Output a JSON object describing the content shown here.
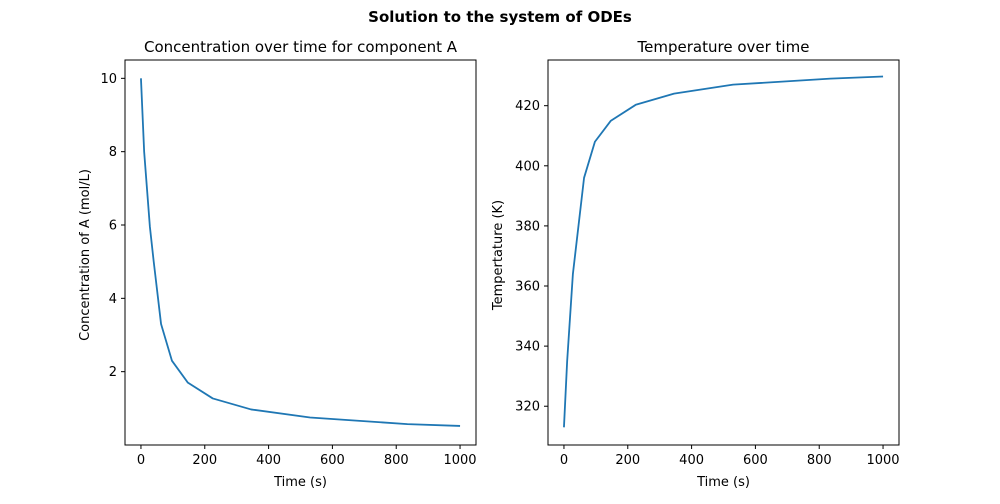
{
  "figure": {
    "suptitle": "Solution to the system of ODEs"
  },
  "colors": {
    "series": "#1f77b4",
    "axes": "#000000",
    "background": "#ffffff"
  },
  "chart_data": [
    {
      "type": "line",
      "title": "Concentration over time for component A",
      "xlabel": "Time (s)",
      "ylabel": "Concentration of A (mol/L)",
      "xlim": [
        -50,
        1050
      ],
      "ylim": [
        -0.0,
        10.5
      ],
      "xticks": [
        0,
        200,
        400,
        600,
        800,
        1000
      ],
      "xtick_labels": [
        "0",
        "200",
        "400",
        "600",
        "800",
        "1000"
      ],
      "yticks": [
        2,
        4,
        6,
        8,
        10
      ],
      "ytick_labels": [
        "2",
        "4",
        "6",
        "8",
        "10"
      ],
      "grid": false,
      "series": [
        {
          "x": [
            0,
            10,
            28,
            40,
            63,
            97,
            147,
            225,
            345,
            530,
            835,
            1000
          ],
          "y": [
            10.0,
            8.0,
            5.95,
            5.0,
            3.3,
            2.3,
            1.7,
            1.27,
            0.97,
            0.75,
            0.57,
            0.52
          ]
        }
      ]
    },
    {
      "type": "line",
      "title": "Temperature over time",
      "xlabel": "Time (s)",
      "ylabel": "Tempertature (K)",
      "xlim": [
        -50,
        1050
      ],
      "ylim": [
        307.1,
        435.2
      ],
      "xticks": [
        0,
        200,
        400,
        600,
        800,
        1000
      ],
      "xtick_labels": [
        "0",
        "200",
        "400",
        "600",
        "800",
        "1000"
      ],
      "yticks": [
        320,
        340,
        360,
        380,
        400,
        420
      ],
      "ytick_labels": [
        "320",
        "340",
        "360",
        "380",
        "400",
        "420"
      ],
      "grid": false,
      "series": [
        {
          "x": [
            0,
            10,
            28,
            63,
            97,
            147,
            225,
            345,
            530,
            835,
            1000
          ],
          "y": [
            313.0,
            335.0,
            364.0,
            396.0,
            408.0,
            415.0,
            420.3,
            424.0,
            427.0,
            429.0,
            429.7
          ]
        }
      ]
    }
  ]
}
